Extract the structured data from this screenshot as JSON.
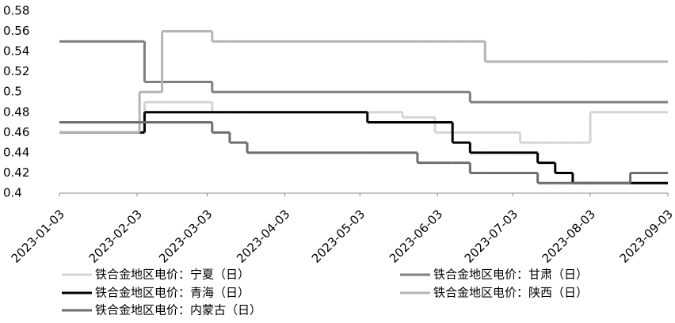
{
  "chart_data": {
    "type": "step-line",
    "x": [
      "2023-01-03",
      "2023-02-04",
      "2023-02-06",
      "2023-02-13",
      "2023-03-05",
      "2023-03-12",
      "2023-03-19",
      "2023-05-06",
      "2023-05-20",
      "2023-05-26",
      "2023-06-02",
      "2023-06-09",
      "2023-06-16",
      "2023-06-22",
      "2023-07-06",
      "2023-07-13",
      "2023-07-20",
      "2023-07-27",
      "2023-08-03",
      "2023-08-19",
      "2023-09-03"
    ],
    "xlim": [
      "2023-01-03",
      "2023-09-03"
    ],
    "xticks": [
      "2023-01-03",
      "2023-02-03",
      "2023-03-03",
      "2023-04-03",
      "2023-05-03",
      "2023-06-03",
      "2023-07-03",
      "2023-08-03",
      "2023-09-03"
    ],
    "ylim": [
      0.4,
      0.58
    ],
    "yticks": [
      0.4,
      0.42,
      0.44,
      0.46,
      0.48,
      0.5,
      0.52,
      0.54,
      0.56,
      0.58
    ],
    "series": [
      {
        "name": "铁合金地区电价：宁夏（日）",
        "color": "#d4d4d4",
        "width": 3,
        "values": [
          0.46,
          0.46,
          0.49,
          0.49,
          0.48,
          0.48,
          0.48,
          0.48,
          0.475,
          0.475,
          0.46,
          0.46,
          0.46,
          0.46,
          0.45,
          0.45,
          0.45,
          0.45,
          0.48,
          0.48,
          0.48
        ]
      },
      {
        "name": "铁合金地区电价：甘肃（日）",
        "color": "#7f7f7f",
        "width": 3,
        "values": [
          0.55,
          0.55,
          0.51,
          0.51,
          0.5,
          0.5,
          0.5,
          0.5,
          0.5,
          0.5,
          0.5,
          0.5,
          0.49,
          0.49,
          0.49,
          0.49,
          0.49,
          0.49,
          0.49,
          0.49,
          0.49
        ]
      },
      {
        "name": "铁合金地区电价：青海（日）",
        "color": "#000000",
        "width": 3,
        "values": [
          0.46,
          0.46,
          0.48,
          0.48,
          0.48,
          0.48,
          0.48,
          0.47,
          0.47,
          0.47,
          0.47,
          0.45,
          0.44,
          0.44,
          0.44,
          0.43,
          0.42,
          0.41,
          0.41,
          0.41,
          0.41
        ]
      },
      {
        "name": "铁合金地区电价：陕西（日）",
        "color": "#b4b4b4",
        "width": 3,
        "values": [
          0.46,
          0.5,
          0.5,
          0.56,
          0.55,
          0.55,
          0.55,
          0.55,
          0.55,
          0.55,
          0.55,
          0.55,
          0.55,
          0.53,
          0.53,
          0.53,
          0.53,
          0.53,
          0.53,
          0.53,
          0.53
        ]
      },
      {
        "name": "铁合金地区电价：内蒙古（日）",
        "color": "#6e6e6e",
        "width": 3,
        "values": [
          0.47,
          0.47,
          0.47,
          0.47,
          0.46,
          0.45,
          0.44,
          0.44,
          0.44,
          0.43,
          0.43,
          0.43,
          0.42,
          0.42,
          0.42,
          0.41,
          0.41,
          0.41,
          0.41,
          0.42,
          0.42
        ]
      }
    ]
  }
}
